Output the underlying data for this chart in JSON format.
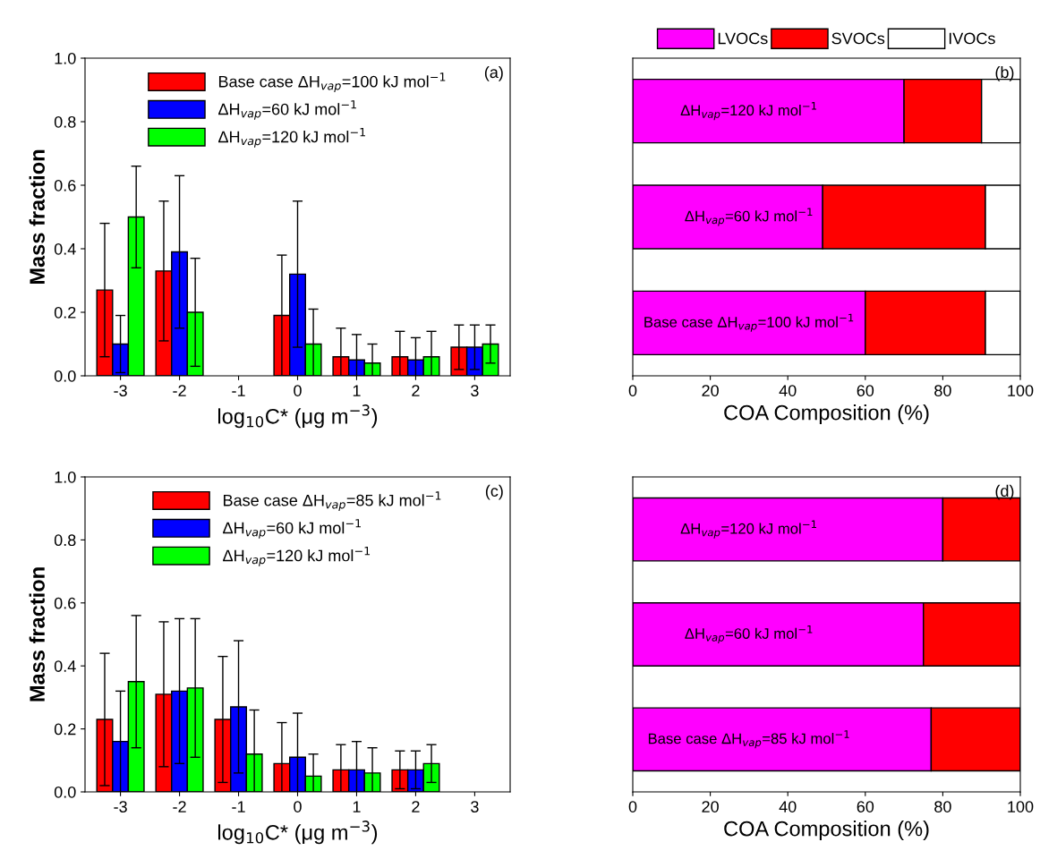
{
  "chart_data": [
    {
      "type": "bar",
      "xlabel": "log$_{10}$C* (μg m$^{−3}$)",
      "ylabel": "Mass fraction",
      "categories": [
        "-3",
        "-2",
        "-1",
        "0",
        "1",
        "2",
        "3"
      ],
      "ylim": [
        0,
        1.0
      ],
      "yticks": [
        {
          "value": 0,
          "label": "0.0"
        },
        {
          "value": 0.2,
          "label": "0.2"
        },
        {
          "value": 0.4,
          "label": "0.4"
        },
        {
          "value": 0.6,
          "label": "0.6"
        },
        {
          "value": 0.8,
          "label": "0.8"
        },
        {
          "value": 1.0,
          "label": "1.0"
        }
      ],
      "legend": "top",
      "annotations": [
        "(a)"
      ],
      "series": [
        {
          "name": "Base case ΔH$_{vap}$=100 kJ mol$^{−1}$",
          "color": "#ff0000",
          "values": [
            0.27,
            0.33,
            null,
            0.19,
            0.06,
            0.06,
            0.09
          ],
          "errors": [
            0.21,
            0.22,
            null,
            0.19,
            0.09,
            0.08,
            0.07
          ]
        },
        {
          "name": "ΔH$_{vap}$=60 kJ mol$^{−1}$",
          "color": "#0000ff",
          "values": [
            0.1,
            0.39,
            null,
            0.32,
            0.05,
            0.05,
            0.09
          ],
          "errors": [
            0.09,
            0.24,
            null,
            0.23,
            0.08,
            0.07,
            0.07
          ]
        },
        {
          "name": "ΔH$_{vap}$=120 kJ mol$^{−1}$",
          "color": "#00ff00",
          "values": [
            0.5,
            0.2,
            null,
            0.1,
            0.04,
            0.06,
            0.1
          ],
          "errors": [
            0.16,
            0.17,
            null,
            0.11,
            0.06,
            0.08,
            0.06
          ]
        }
      ]
    },
    {
      "type": "bar",
      "orientation": "horizontal",
      "stacked": true,
      "xlabel": "COA Composition (%)",
      "categories": [
        "ΔH$_{vap}$=120 kJ mol$^{−1}$",
        "ΔH$_{vap}$=60 kJ mol$^{−1}$",
        "Base case ΔH$_{vap}$=100 kJ mol$^{−1}$"
      ],
      "xlim": [
        0,
        100
      ],
      "xticks": [
        0,
        20,
        40,
        60,
        80,
        100
      ],
      "tick_labels": "x",
      "legend": "top",
      "annotations": [
        "(b)"
      ],
      "series": [
        {
          "name": "LVOCs",
          "color": "#ff00ff",
          "values": [
            70,
            49,
            60
          ]
        },
        {
          "name": "SVOCs",
          "color": "#ff0000",
          "values": [
            20,
            42,
            31
          ]
        },
        {
          "name": "IVOCs",
          "color": "#ffffff",
          "values": [
            10,
            9,
            9
          ]
        }
      ]
    },
    {
      "type": "bar",
      "xlabel": "log$_{10}$C* (μg m$^{−3}$)",
      "ylabel": "Mass fraction",
      "categories": [
        "-3",
        "-2",
        "-1",
        "0",
        "1",
        "2",
        "3"
      ],
      "ylim": [
        0,
        1.0
      ],
      "yticks": [
        {
          "value": 0,
          "label": "0.0"
        },
        {
          "value": 0.2,
          "label": "0.2"
        },
        {
          "value": 0.4,
          "label": "0.4"
        },
        {
          "value": 0.6,
          "label": "0.6"
        },
        {
          "value": 0.8,
          "label": "0.8"
        },
        {
          "value": 1.0,
          "label": "1.0"
        }
      ],
      "legend": "top",
      "annotations": [
        "(c)"
      ],
      "series": [
        {
          "name": "Base case ΔH$_{vap}$=85 kJ mol$^{−1}$",
          "color": "#ff0000",
          "values": [
            0.23,
            0.31,
            0.23,
            0.09,
            0.07,
            0.07,
            null
          ],
          "errors": [
            0.21,
            0.23,
            0.2,
            0.13,
            0.08,
            0.06,
            null
          ]
        },
        {
          "name": "ΔH$_{vap}$=60 kJ mol$^{−1}$",
          "color": "#0000ff",
          "values": [
            0.16,
            0.32,
            0.27,
            0.11,
            0.07,
            0.07,
            null
          ],
          "errors": [
            0.16,
            0.23,
            0.21,
            0.14,
            0.09,
            0.06,
            null
          ]
        },
        {
          "name": "ΔH$_{vap}$=120 kJ mol$^{−1}$",
          "color": "#00ff00",
          "values": [
            0.35,
            0.33,
            0.12,
            0.05,
            0.06,
            0.09,
            null
          ],
          "errors": [
            0.21,
            0.22,
            0.14,
            0.07,
            0.08,
            0.06,
            null
          ]
        }
      ]
    },
    {
      "type": "bar",
      "orientation": "horizontal",
      "stacked": true,
      "xlabel": "COA Composition (%)",
      "categories": [
        "ΔH$_{vap}$=120 kJ mol$^{−1}$",
        "ΔH$_{vap}$=60 kJ mol$^{−1}$",
        "Base case ΔH$_{vap}$=85 kJ mol$^{−1}$"
      ],
      "xlim": [
        0,
        100
      ],
      "xticks": [
        0,
        20,
        40,
        60,
        80,
        100
      ],
      "tick_labels": "x",
      "annotations": [
        "(d)"
      ],
      "series": [
        {
          "color": "#ff00ff",
          "values": [
            80,
            75,
            77
          ]
        },
        {
          "color": "#ff0000",
          "values": [
            20,
            25,
            23
          ]
        }
      ]
    }
  ]
}
